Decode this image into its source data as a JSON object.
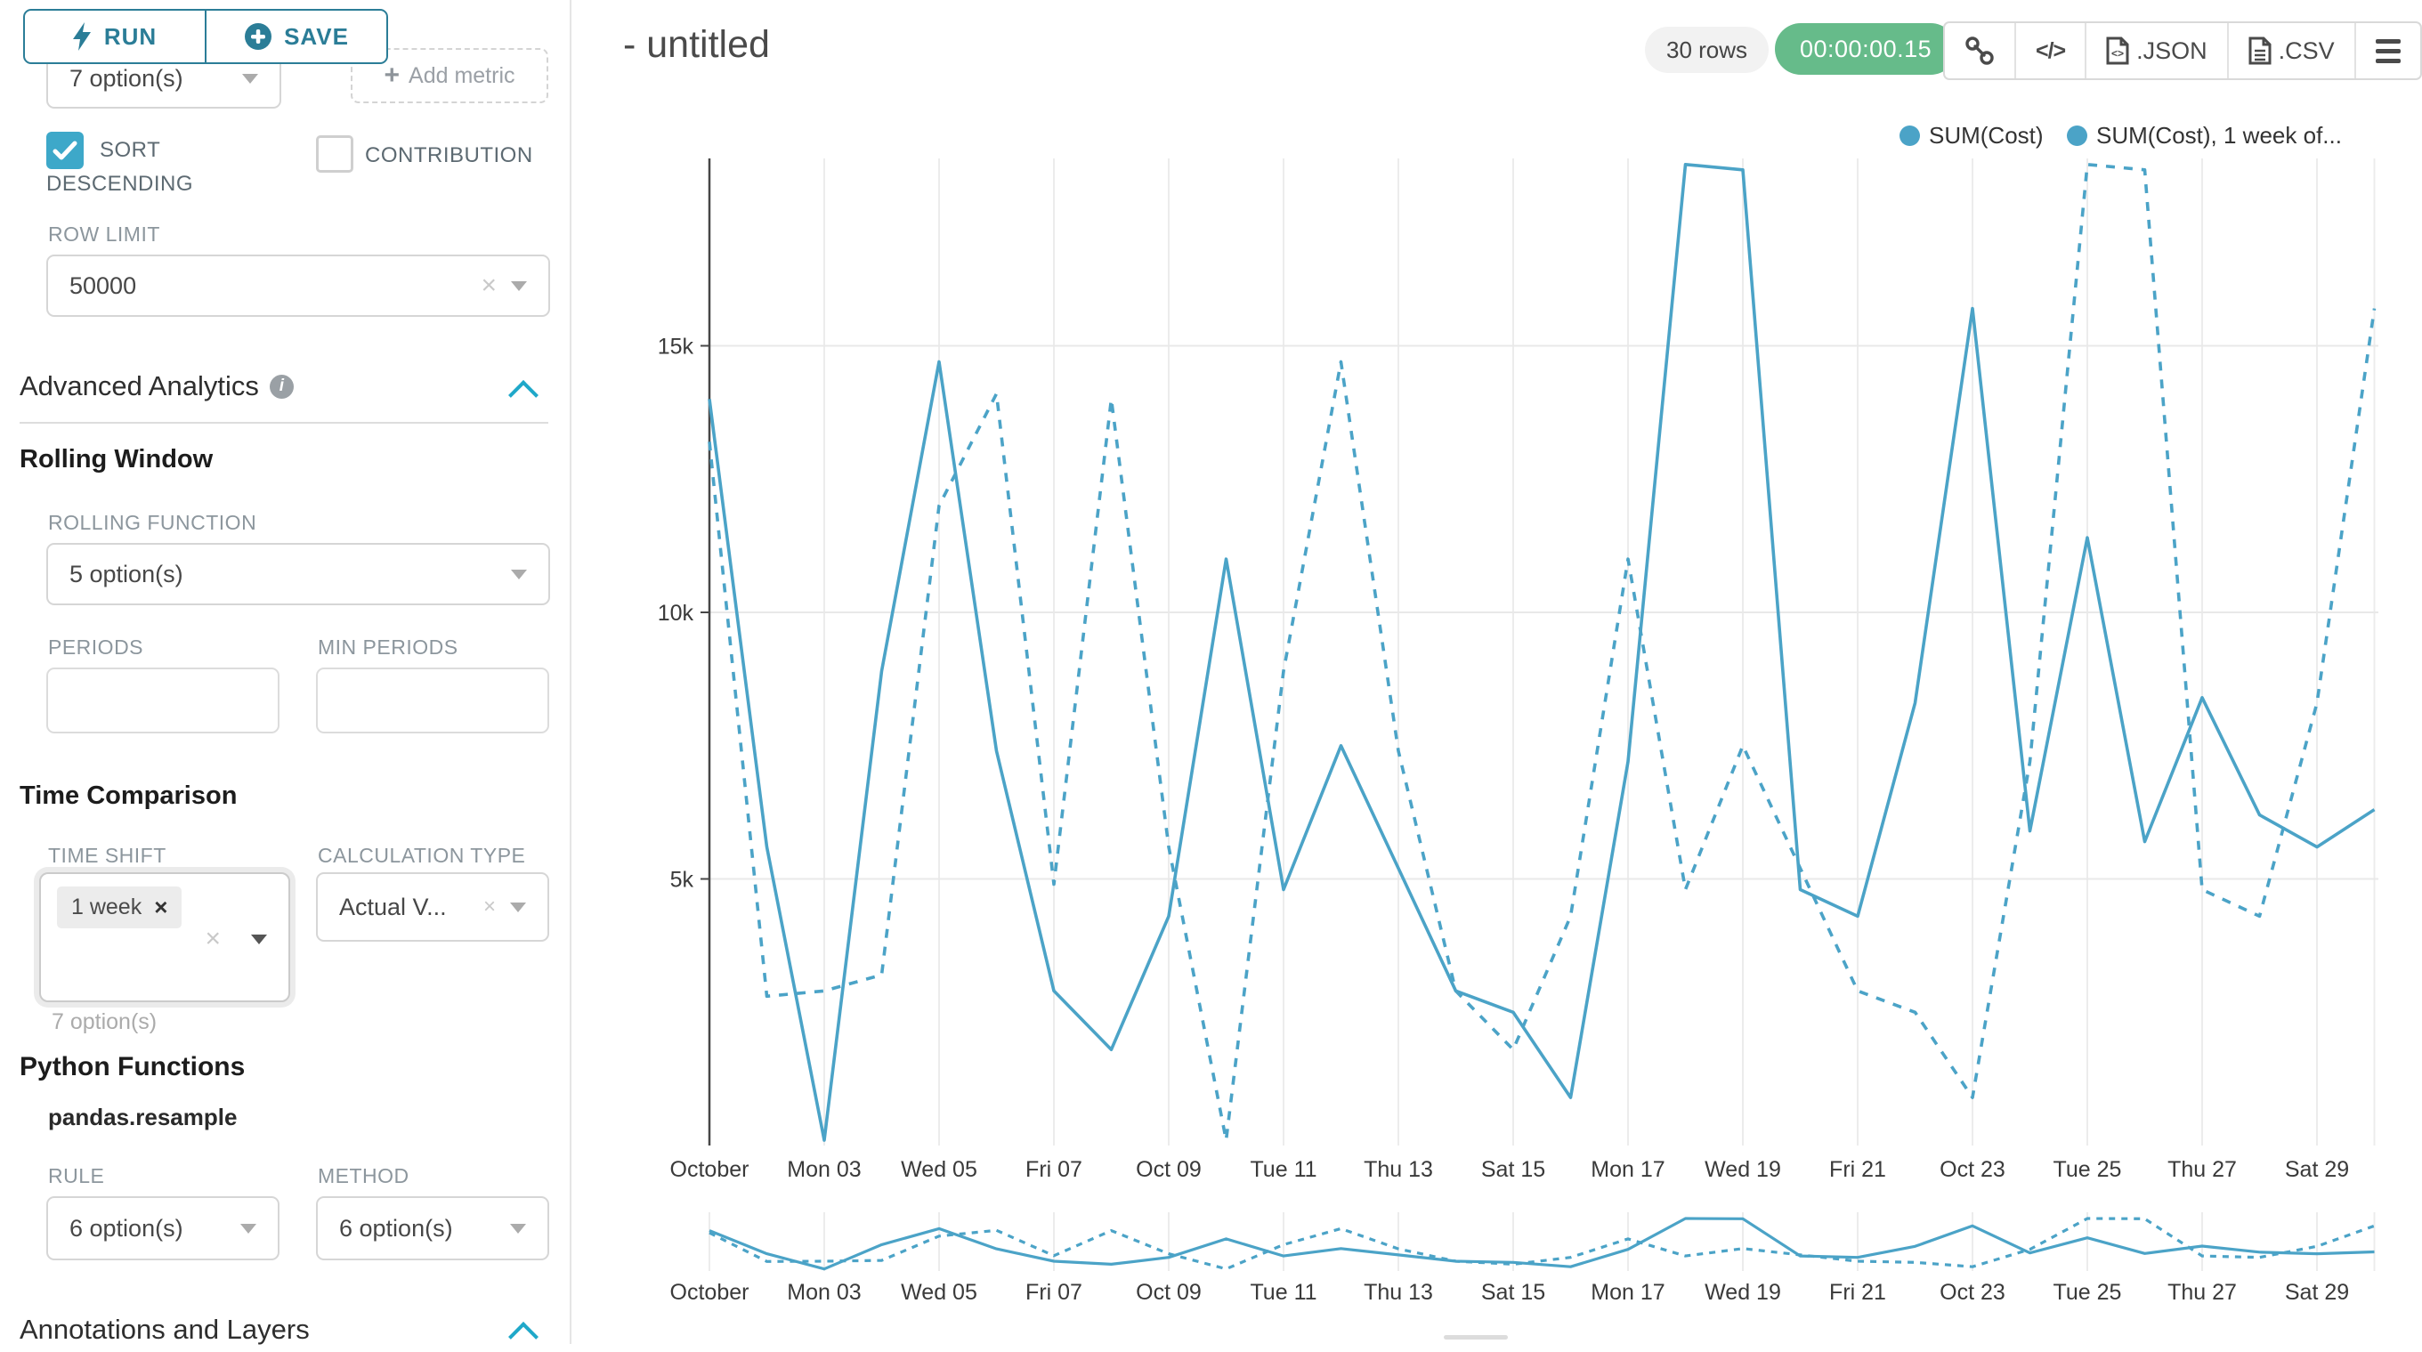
{
  "sidebar": {
    "run_label": "RUN",
    "save_label": "SAVE",
    "series_limit_value": "7 option(s)",
    "add_metric_label": "Add metric",
    "sort_descending_label": "SORT DESCENDING",
    "contribution_label": "CONTRIBUTION",
    "row_limit_label": "ROW LIMIT",
    "row_limit_value": "50000",
    "advanced_analytics_title": "Advanced Analytics",
    "rolling_window_title": "Rolling Window",
    "rolling_function_label": "ROLLING FUNCTION",
    "rolling_function_value": "5 option(s)",
    "periods_label": "PERIODS",
    "min_periods_label": "MIN PERIODS",
    "time_comparison_title": "Time Comparison",
    "time_shift_label": "TIME SHIFT",
    "time_shift_tag": "1 week",
    "time_shift_hint": "7 option(s)",
    "calculation_type_label": "CALCULATION TYPE",
    "calculation_type_value": "Actual V...",
    "python_functions_title": "Python Functions",
    "pandas_resample_label": "pandas.resample",
    "rule_label": "RULE",
    "rule_value": "6 option(s)",
    "method_label": "METHOD",
    "method_value": "6 option(s)",
    "annotations_title": "Annotations and Layers"
  },
  "header": {
    "title": "- untitled",
    "rows_badge": "30 rows",
    "timer": "00:00:00.15",
    "json_label": ".JSON",
    "csv_label": ".CSV",
    "code_glyph": "</>"
  },
  "legend": [
    {
      "label": "SUM(Cost)"
    },
    {
      "label": "SUM(Cost), 1 week of..."
    }
  ],
  "colors": {
    "line": "#4BA3C7",
    "timer_green": "#66BB8A",
    "accent_teal": "#1FA8C9",
    "button_teal": "#2B7D97",
    "checkbox_blue": "#3DA8C9"
  },
  "chart_data": {
    "type": "line",
    "x_start": "October 01",
    "x_end": "October 30",
    "x_tick_labels": [
      "October",
      "Mon 03",
      "Wed 05",
      "Fri 07",
      "Oct 09",
      "Tue 11",
      "Thu 13",
      "Sat 15",
      "Mon 17",
      "Wed 19",
      "Fri 21",
      "Oct 23",
      "Tue 25",
      "Thu 27",
      "Sat 29"
    ],
    "y_tick_labels": [
      "5k",
      "10k",
      "15k"
    ],
    "y_tick_values": [
      5000,
      10000,
      15000
    ],
    "ylim": [
      0,
      19000
    ],
    "grid": true,
    "legend_position": "top-right",
    "series": [
      {
        "name": "SUM(Cost)",
        "line_style": "solid",
        "values": [
          14000,
          5600,
          100,
          8900,
          14700,
          7400,
          2900,
          1800,
          4300,
          11000,
          4800,
          7500,
          5200,
          2900,
          2500,
          900,
          7200,
          18400,
          18300,
          4800,
          4300,
          8300,
          15700,
          5900,
          11400,
          5700,
          8400,
          6200,
          5600,
          6300
        ]
      },
      {
        "name": "SUM(Cost), 1 week of...",
        "line_style": "dashed",
        "values": [
          13200,
          2800,
          2900,
          3200,
          12000,
          14100,
          4900,
          14000,
          5600,
          100,
          8900,
          14700,
          7400,
          2900,
          1800,
          4300,
          11000,
          4800,
          7500,
          5200,
          2900,
          2500,
          900,
          7200,
          18400,
          18300,
          4800,
          4300,
          8300,
          15700
        ]
      }
    ]
  }
}
